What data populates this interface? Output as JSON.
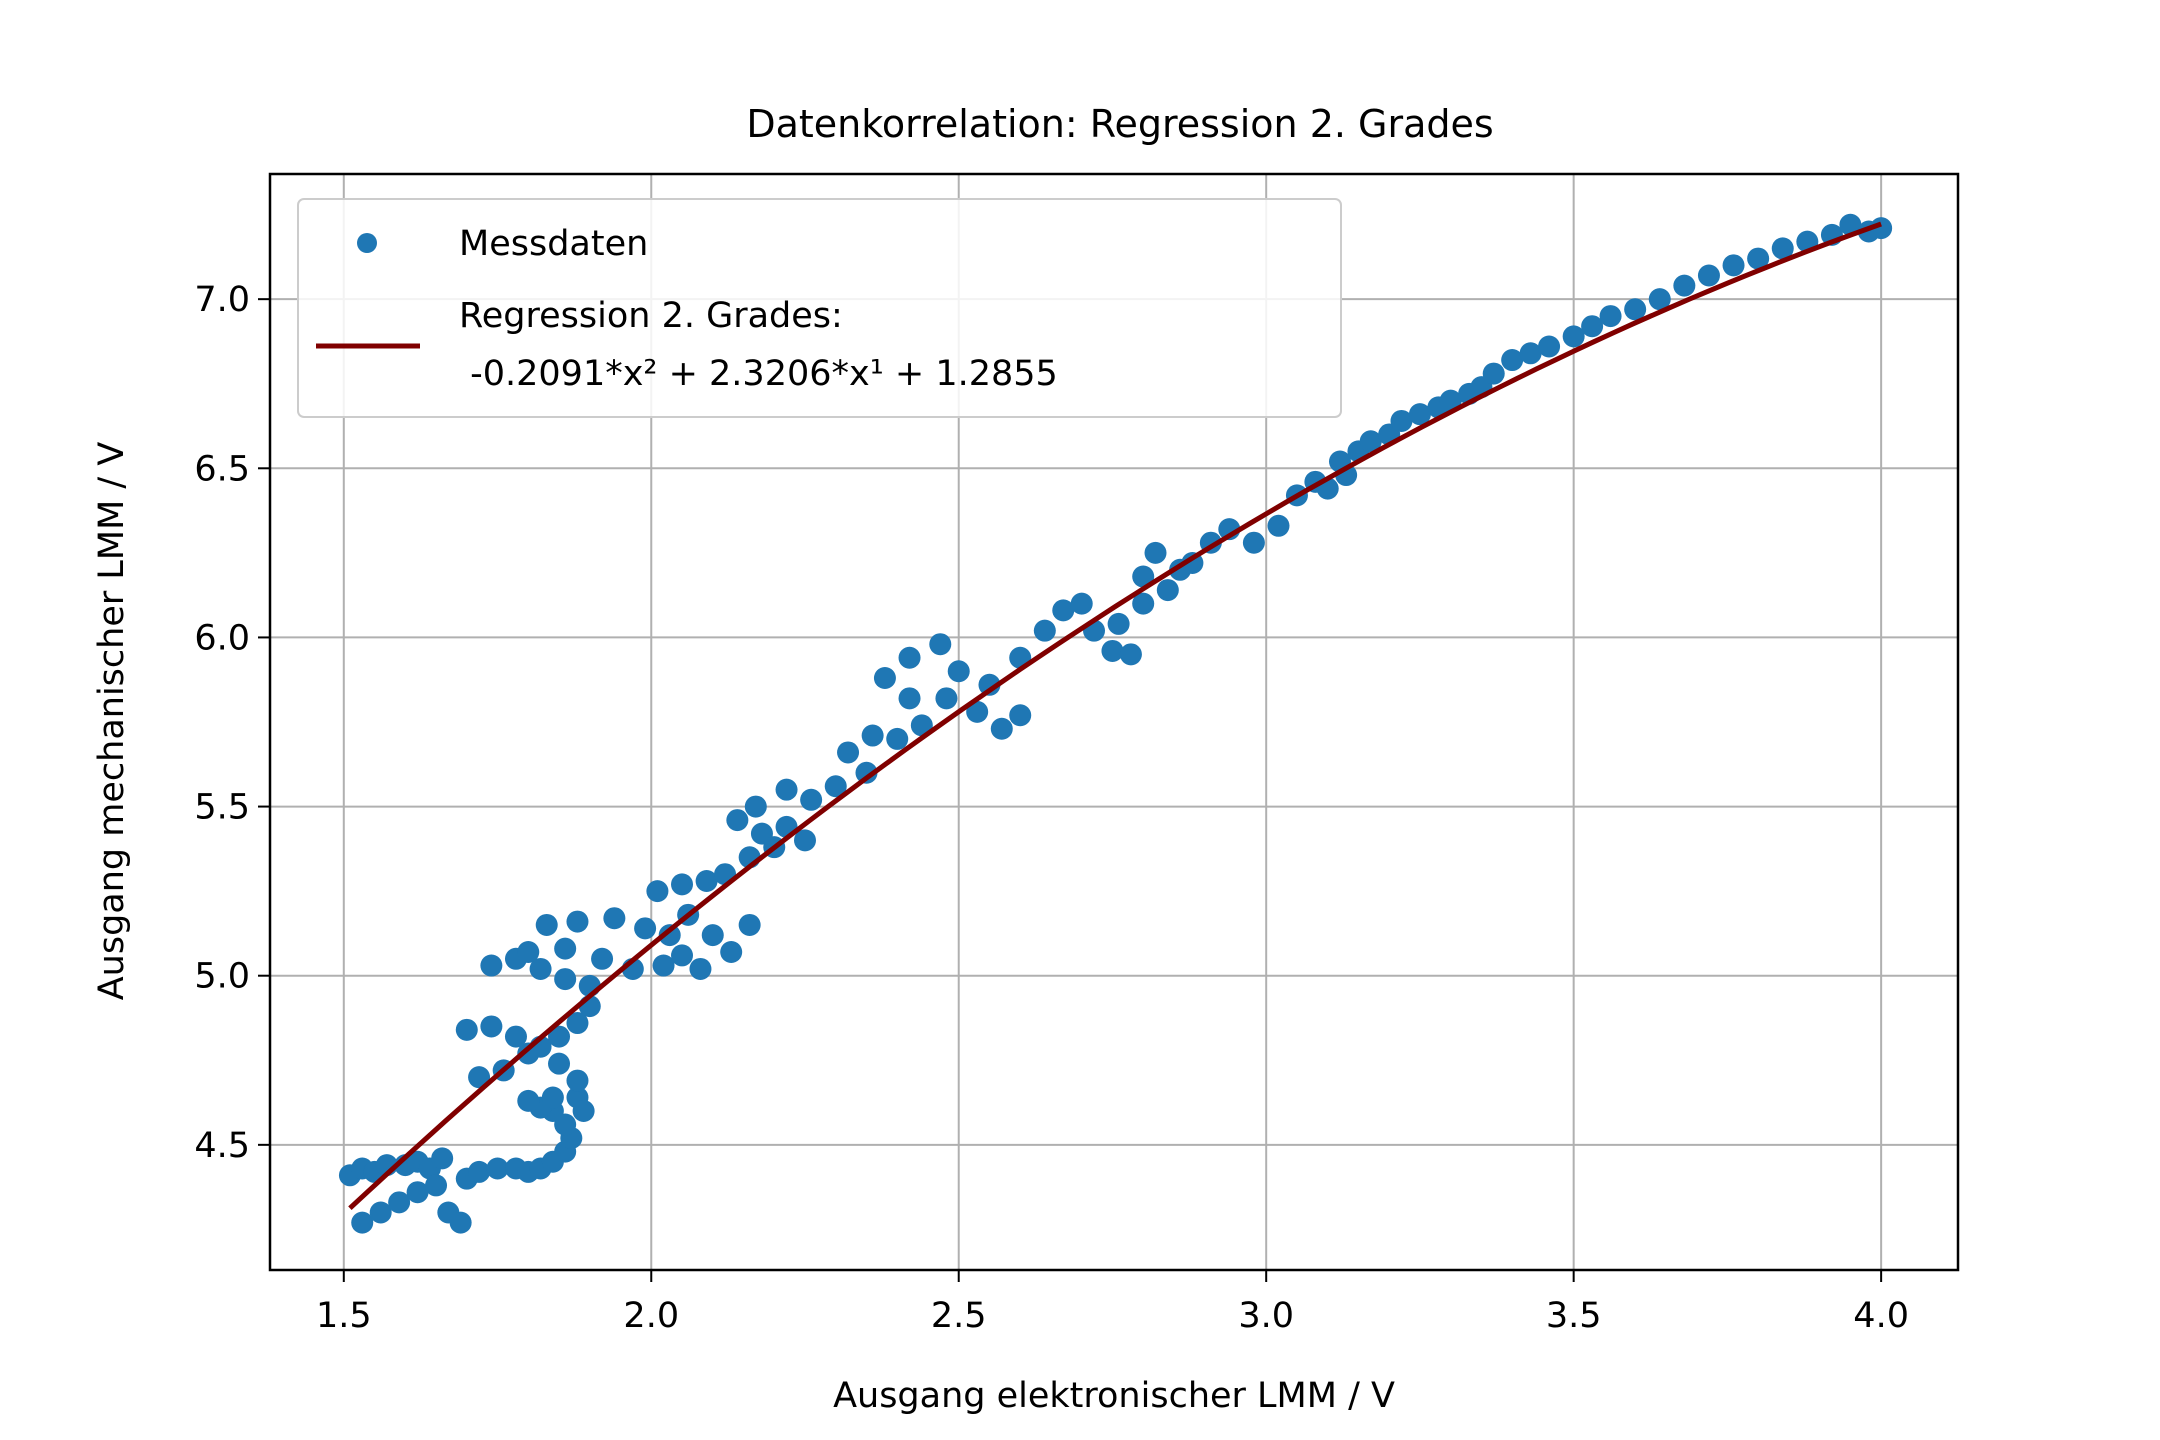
{
  "chart_data": {
    "type": "scatter",
    "title": "Datenkorrelation: Regression 2. Grades",
    "xlabel": "Ausgang elektronischer LMM / V",
    "ylabel": "Ausgang mechanischer LMM / V",
    "xlim": [
      1.38,
      4.125
    ],
    "ylim": [
      4.13,
      7.37
    ],
    "xticks": [
      "1.5",
      "2.0",
      "2.5",
      "3.0",
      "3.5",
      "4.0"
    ],
    "yticks": [
      "4.5",
      "5.0",
      "5.5",
      "6.0",
      "6.5",
      "7.0"
    ],
    "grid": true,
    "legend_position": "top-left",
    "series": [
      {
        "name": "Messdaten",
        "kind": "scatter",
        "color": "#1f77b4",
        "points": [
          [
            1.51,
            4.41
          ],
          [
            1.53,
            4.43
          ],
          [
            1.55,
            4.42
          ],
          [
            1.57,
            4.44
          ],
          [
            1.6,
            4.44
          ],
          [
            1.62,
            4.45
          ],
          [
            1.64,
            4.43
          ],
          [
            1.66,
            4.46
          ],
          [
            1.53,
            4.27
          ],
          [
            1.56,
            4.3
          ],
          [
            1.59,
            4.33
          ],
          [
            1.62,
            4.36
          ],
          [
            1.65,
            4.38
          ],
          [
            1.67,
            4.3
          ],
          [
            1.69,
            4.27
          ],
          [
            1.7,
            4.4
          ],
          [
            1.72,
            4.42
          ],
          [
            1.75,
            4.43
          ],
          [
            1.78,
            4.43
          ],
          [
            1.8,
            4.42
          ],
          [
            1.82,
            4.43
          ],
          [
            1.84,
            4.45
          ],
          [
            1.86,
            4.48
          ],
          [
            1.87,
            4.52
          ],
          [
            1.86,
            4.56
          ],
          [
            1.84,
            4.6
          ],
          [
            1.82,
            4.61
          ],
          [
            1.8,
            4.63
          ],
          [
            1.84,
            4.64
          ],
          [
            1.88,
            4.64
          ],
          [
            1.89,
            4.6
          ],
          [
            1.88,
            4.69
          ],
          [
            1.85,
            4.74
          ],
          [
            1.8,
            4.77
          ],
          [
            1.76,
            4.72
          ],
          [
            1.72,
            4.7
          ],
          [
            1.7,
            4.84
          ],
          [
            1.74,
            4.85
          ],
          [
            1.78,
            4.82
          ],
          [
            1.82,
            4.79
          ],
          [
            1.85,
            4.82
          ],
          [
            1.88,
            4.86
          ],
          [
            1.9,
            4.91
          ],
          [
            1.9,
            4.97
          ],
          [
            1.86,
            4.99
          ],
          [
            1.82,
            5.02
          ],
          [
            1.78,
            5.05
          ],
          [
            1.74,
            5.03
          ],
          [
            1.8,
            5.07
          ],
          [
            1.86,
            5.08
          ],
          [
            1.92,
            5.05
          ],
          [
            1.97,
            5.02
          ],
          [
            2.02,
            5.03
          ],
          [
            2.05,
            5.06
          ],
          [
            2.08,
            5.02
          ],
          [
            1.83,
            5.15
          ],
          [
            1.88,
            5.16
          ],
          [
            1.94,
            5.17
          ],
          [
            1.99,
            5.14
          ],
          [
            2.03,
            5.12
          ],
          [
            2.06,
            5.18
          ],
          [
            2.1,
            5.12
          ],
          [
            2.13,
            5.07
          ],
          [
            2.16,
            5.15
          ],
          [
            2.01,
            5.25
          ],
          [
            2.05,
            5.27
          ],
          [
            2.09,
            5.28
          ],
          [
            2.12,
            5.3
          ],
          [
            2.16,
            5.35
          ],
          [
            2.18,
            5.42
          ],
          [
            2.22,
            5.44
          ],
          [
            2.25,
            5.4
          ],
          [
            2.2,
            5.38
          ],
          [
            2.14,
            5.46
          ],
          [
            2.17,
            5.5
          ],
          [
            2.22,
            5.55
          ],
          [
            2.26,
            5.52
          ],
          [
            2.3,
            5.56
          ],
          [
            2.35,
            5.6
          ],
          [
            2.32,
            5.66
          ],
          [
            2.36,
            5.71
          ],
          [
            2.4,
            5.7
          ],
          [
            2.44,
            5.74
          ],
          [
            2.42,
            5.82
          ],
          [
            2.38,
            5.88
          ],
          [
            2.42,
            5.94
          ],
          [
            2.47,
            5.98
          ],
          [
            2.5,
            5.9
          ],
          [
            2.48,
            5.82
          ],
          [
            2.53,
            5.78
          ],
          [
            2.57,
            5.73
          ],
          [
            2.6,
            5.77
          ],
          [
            2.55,
            5.86
          ],
          [
            2.6,
            5.94
          ],
          [
            2.64,
            6.02
          ],
          [
            2.67,
            6.08
          ],
          [
            2.7,
            6.1
          ],
          [
            2.72,
            6.02
          ],
          [
            2.75,
            5.96
          ],
          [
            2.78,
            5.95
          ],
          [
            2.76,
            6.04
          ],
          [
            2.8,
            6.1
          ],
          [
            2.84,
            6.14
          ],
          [
            2.86,
            6.2
          ],
          [
            2.82,
            6.25
          ],
          [
            2.8,
            6.18
          ],
          [
            2.88,
            6.22
          ],
          [
            2.91,
            6.28
          ],
          [
            2.94,
            6.32
          ],
          [
            2.98,
            6.28
          ],
          [
            3.02,
            6.33
          ],
          [
            3.05,
            6.42
          ],
          [
            3.08,
            6.46
          ],
          [
            3.1,
            6.44
          ],
          [
            3.13,
            6.48
          ],
          [
            3.15,
            6.55
          ],
          [
            3.12,
            6.52
          ],
          [
            3.17,
            6.58
          ],
          [
            3.2,
            6.6
          ],
          [
            3.22,
            6.64
          ],
          [
            3.25,
            6.66
          ],
          [
            3.28,
            6.68
          ],
          [
            3.3,
            6.7
          ],
          [
            3.33,
            6.72
          ],
          [
            3.35,
            6.74
          ],
          [
            3.37,
            6.78
          ],
          [
            3.4,
            6.82
          ],
          [
            3.43,
            6.84
          ],
          [
            3.46,
            6.86
          ],
          [
            3.5,
            6.89
          ],
          [
            3.53,
            6.92
          ],
          [
            3.56,
            6.95
          ],
          [
            3.6,
            6.97
          ],
          [
            3.64,
            7.0
          ],
          [
            3.68,
            7.04
          ],
          [
            3.72,
            7.07
          ],
          [
            3.76,
            7.1
          ],
          [
            3.8,
            7.12
          ],
          [
            3.84,
            7.15
          ],
          [
            3.88,
            7.17
          ],
          [
            3.92,
            7.19
          ],
          [
            3.95,
            7.22
          ],
          [
            3.98,
            7.2
          ],
          [
            4.0,
            7.21
          ]
        ]
      },
      {
        "name_lines": [
          "Regression 2. Grades:",
          " -0.2091*x² + 2.3206*x¹ + 1.2855"
        ],
        "kind": "line",
        "color": "#800000",
        "coefficients": [
          -0.2091,
          2.3206,
          1.2855
        ],
        "x_range": [
          1.51,
          4.0
        ]
      }
    ]
  }
}
